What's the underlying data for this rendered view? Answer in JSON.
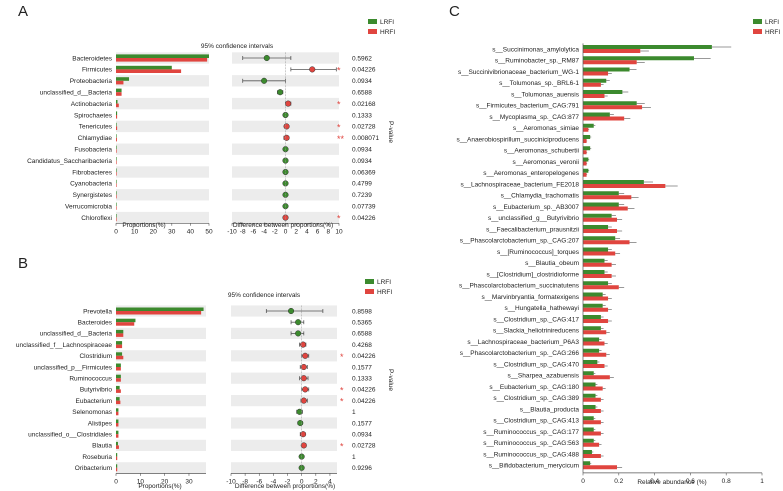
{
  "colors": {
    "lrfi": "#3c8a2e",
    "hrfi": "#e0453f",
    "band": "#ececec",
    "axis": "#555555"
  },
  "chart_data": [
    {
      "panel": "A",
      "type": "bar",
      "legend": [
        "LRFI",
        "HRFI"
      ],
      "categories": [
        "Bacteroidetes",
        "Firmicutes",
        "Proteobacteria",
        "unclassified_d__Bacteria",
        "Actinobacteria",
        "Spirochaetes",
        "Tenericutes",
        "Chlamydiae",
        "Fusobacteria",
        "Candidatus_Saccharibacteria",
        "Fibrobacteres",
        "Cyanobacteria",
        "Synergistetes",
        "Verrucomicrobia",
        "Chloroflexi"
      ],
      "series": [
        {
          "name": "LRFI",
          "values": [
            50,
            30,
            7,
            3,
            0.8,
            0.6,
            0.3,
            0.2,
            0.1,
            0.1,
            0.1,
            0.1,
            0.1,
            0.1,
            0.05
          ]
        },
        {
          "name": "HRFI",
          "values": [
            49,
            35,
            4,
            3,
            1.5,
            0.6,
            0.6,
            0.5,
            0.1,
            0.1,
            0.1,
            0.1,
            0.1,
            0.1,
            0.1
          ]
        }
      ],
      "xlim": [
        0,
        50
      ],
      "xticks": [
        "0",
        "10",
        "20",
        "30",
        "40",
        "50"
      ],
      "xlabel": "Proportions(%)",
      "ci": {
        "title": "95% confidence intervals",
        "xlabel": "Difference between proportions(%)",
        "xlim": [
          -10,
          10
        ],
        "xticks": [
          "-10",
          "-8",
          "-6",
          "-4",
          "-2",
          "0",
          "2",
          "4",
          "6",
          "8",
          "10"
        ],
        "diff": [
          -3.5,
          5,
          -4,
          -1,
          0.5,
          0,
          0.2,
          0.2,
          0,
          0,
          0,
          0,
          0,
          0,
          0
        ],
        "lower": [
          -8,
          1,
          -8,
          -1.5,
          0,
          -0.2,
          -0.2,
          -0.3,
          -0.1,
          -0.1,
          -0.1,
          -0.1,
          -0.1,
          -0.1,
          -0.1
        ],
        "upper": [
          1,
          9.5,
          0,
          -0.5,
          1,
          0.2,
          0.5,
          0.6,
          0.1,
          0.1,
          0.1,
          0.1,
          0.1,
          0.1,
          0.1
        ],
        "winner": [
          "LRFI",
          "HRFI",
          "LRFI",
          "LRFI",
          "HRFI",
          "LRFI",
          "HRFI",
          "HRFI",
          "LRFI",
          "LRFI",
          "LRFI",
          "LRFI",
          "LRFI",
          "LRFI",
          "HRFI"
        ]
      },
      "pvalues": [
        "0.5962",
        "0.04226",
        "0.0934",
        "0.6588",
        "0.02168",
        "0.1333",
        "0.02728",
        "0.008071",
        "0.0934",
        "0.0934",
        "0.06369",
        "0.4799",
        "0.7239",
        "0.07739",
        "0.04226"
      ],
      "stars": [
        "",
        "*",
        "",
        "",
        "*",
        "",
        "*",
        "**",
        "",
        "",
        "",
        "",
        "",
        "",
        "*"
      ],
      "pvalue_label": "P-value"
    },
    {
      "panel": "B",
      "type": "bar",
      "legend": [
        "LRFI",
        "HRFI"
      ],
      "categories": [
        "Prevotella",
        "Bacteroides",
        "unclassified_d__Bacteria",
        "unclassified_f__Lachnospiraceae",
        "Clostridium",
        "unclassified_p__Firmicutes",
        "Ruminococcus",
        "Butyrivibrio",
        "Eubacterium",
        "Selenomonas",
        "Alistipes",
        "unclassified_o__Clostridiales",
        "Blautia",
        "Roseburia",
        "Oribacterium"
      ],
      "series": [
        {
          "name": "LRFI",
          "values": [
            36,
            8,
            3,
            2.5,
            2.5,
            2,
            2,
            1.5,
            1.5,
            1,
            1,
            1,
            0.8,
            0.5,
            0.5
          ]
        },
        {
          "name": "HRFI",
          "values": [
            35,
            7.5,
            3,
            2.5,
            3,
            2,
            2,
            2,
            1.8,
            1,
            1,
            1,
            1.2,
            0.5,
            0.5
          ]
        }
      ],
      "xlim": [
        0,
        37
      ],
      "xticks": [
        "0",
        "10",
        "20",
        "30"
      ],
      "xlabel": "Proportions(%)",
      "ci": {
        "title": "95% confidence intervals",
        "xlabel": "Difference between proportions(%)",
        "xlim": [
          -10,
          5
        ],
        "xticks": [
          "-10",
          "-8",
          "-6",
          "-4",
          "-2",
          "0",
          "2",
          "4"
        ],
        "diff": [
          -1.5,
          -0.5,
          -0.5,
          0.2,
          0.5,
          0.3,
          0.3,
          0.5,
          0.3,
          -0.3,
          -0.2,
          0.2,
          0.3,
          0,
          0
        ],
        "lower": [
          -5,
          -1.5,
          -1.5,
          -0.3,
          0,
          -0.2,
          -0.3,
          0,
          -0.1,
          -0.7,
          -0.5,
          -0.2,
          0,
          -0.1,
          -0.1
        ],
        "upper": [
          3,
          0.3,
          0.3,
          0.6,
          1,
          0.8,
          0.9,
          1,
          0.8,
          0.1,
          0.1,
          0.5,
          0.6,
          0.1,
          0.1
        ],
        "winner": [
          "LRFI",
          "LRFI",
          "LRFI",
          "HRFI",
          "HRFI",
          "HRFI",
          "HRFI",
          "HRFI",
          "HRFI",
          "LRFI",
          "LRFI",
          "HRFI",
          "HRFI",
          "LRFI",
          "LRFI"
        ]
      },
      "pvalues": [
        "0.8598",
        "0.5365",
        "0.6588",
        "0.4268",
        "0.04226",
        "0.1577",
        "0.1333",
        "0.04226",
        "0.04226",
        "1",
        "0.1577",
        "0.0934",
        "0.02728",
        "1",
        "0.9296"
      ],
      "stars": [
        "",
        "",
        "",
        "",
        "*",
        "",
        "",
        "*",
        "*",
        "",
        "",
        "",
        "*",
        "",
        ""
      ],
      "pvalue_label": "P-value"
    },
    {
      "panel": "C",
      "type": "bar",
      "orientation": "horizontal",
      "legend": [
        "LRFI",
        "HRFI"
      ],
      "categories": [
        "s__Succinimonas_amylolytica",
        "s__Ruminobacter_sp._RM87",
        "s__Succinivibrionaceae_bacterium_WG-1",
        "s__Tolumonas_sp._BRL6-1",
        "s__Tolumonas_auensis",
        "s__Firmicutes_bacterium_CAG:791",
        "s__Mycoplasma_sp._CAG:877",
        "s__Aeromonas_simiae",
        "s__Anaerobiospirillum_succiniciproducens",
        "s__Aeromonas_schubertii",
        "s__Aeromonas_veronii",
        "s__Aeromonas_enteropelogenes",
        "s__Lachnospiraceae_bacterium_FE2018",
        "s__Chlamydia_trachomatis",
        "s__Eubacterium_sp._AB3007",
        "s__unclassified_g__Butyrivibrio",
        "s__Faecalibacterium_prausnitzii",
        "s__Phascolarctobacterium_sp._CAG:207",
        "s__[Ruminococcus]_torques",
        "s__Blautia_obeum",
        "s__[Clostridium]_clostridioforme",
        "s__Phascolarctobacterium_succinatutens",
        "s__Marvinbryantia_formatexigens",
        "s__Hungatella_hathewayi",
        "s__Clostridium_sp._CAG:417",
        "s__Slackia_heliotrinireducens",
        "s__Lachnospiraceae_bacterium_P6A3",
        "s__Phascolarctobacterium_sp._CAG:266",
        "s__Clostridium_sp._CAG:470",
        "s__Sharpea_azabuensis",
        "s__Eubacterium_sp._CAG:180",
        "s__Clostridium_sp._CAG:389",
        "s__Blautia_producta",
        "s__Clostridium_sp._CAG:413",
        "s__Ruminococcus_sp._CAG:177",
        "s__Ruminococcus_sp._CAG:563",
        "s__Ruminococcus_sp._CAG:488",
        "s__Bifidobacterium_merycicum"
      ],
      "series": [
        {
          "name": "LRFI",
          "values": [
            0.72,
            0.62,
            0.26,
            0.13,
            0.22,
            0.3,
            0.15,
            0.06,
            0.04,
            0.04,
            0.03,
            0.03,
            0.34,
            0.2,
            0.2,
            0.16,
            0.14,
            0.18,
            0.14,
            0.12,
            0.12,
            0.14,
            0.11,
            0.11,
            0.1,
            0.1,
            0.09,
            0.09,
            0.08,
            0.06,
            0.07,
            0.07,
            0.07,
            0.06,
            0.06,
            0.06,
            0.05,
            0.04
          ]
        },
        {
          "name": "HRFI",
          "values": [
            0.32,
            0.3,
            0.14,
            0.1,
            0.12,
            0.33,
            0.23,
            0.03,
            0.02,
            0.02,
            0.02,
            0.02,
            0.46,
            0.27,
            0.25,
            0.19,
            0.19,
            0.26,
            0.18,
            0.16,
            0.16,
            0.2,
            0.14,
            0.14,
            0.14,
            0.13,
            0.12,
            0.13,
            0.12,
            0.15,
            0.11,
            0.1,
            0.1,
            0.1,
            0.1,
            0.09,
            0.1,
            0.19
          ]
        }
      ],
      "xlim": [
        0,
        1
      ],
      "xticks": [
        "0",
        "0.2",
        "0.4",
        "0.6",
        "0.8",
        "1"
      ],
      "xlabel": "Relative abundance (%)"
    }
  ]
}
